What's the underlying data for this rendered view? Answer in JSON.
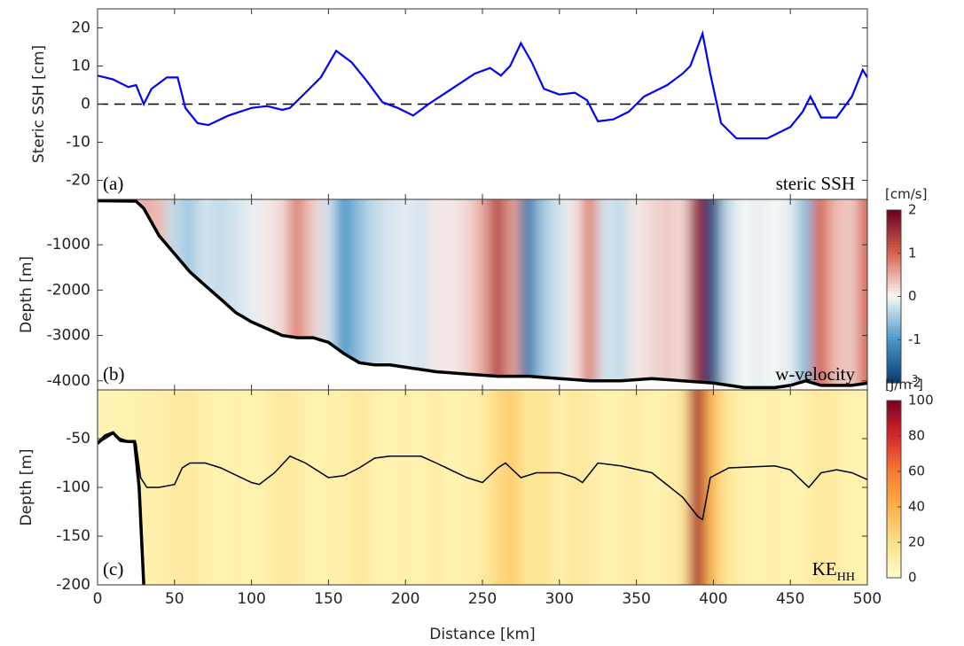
{
  "chart_data": [
    {
      "type": "line",
      "title": "steric SSH",
      "panel_label": "(a)",
      "ylabel": "Steric SSH [cm]",
      "color": "#0000ff",
      "x": [
        0,
        10,
        20,
        25,
        30,
        35,
        45,
        52,
        57,
        65,
        72,
        85,
        100,
        110,
        120,
        125,
        135,
        145,
        155,
        165,
        175,
        185,
        195,
        205,
        215,
        230,
        245,
        255,
        262,
        268,
        275,
        282,
        290,
        300,
        310,
        318,
        325,
        335,
        345,
        355,
        370,
        380,
        385,
        393,
        398,
        405,
        415,
        435,
        450,
        458,
        463,
        470,
        480,
        490,
        497,
        500
      ],
      "values": [
        7.5,
        6.5,
        4.5,
        5,
        0,
        4,
        7,
        7,
        -1,
        -5,
        -5.5,
        -3,
        -1,
        -0.5,
        -1.5,
        -1,
        3,
        7,
        14,
        11,
        6,
        0.5,
        -1,
        -3,
        0,
        4,
        8,
        9.5,
        7.5,
        10,
        16,
        11,
        4,
        2.5,
        3,
        1,
        -4.5,
        -4,
        -2,
        2,
        5,
        8,
        10,
        18.5,
        8,
        -5,
        -9,
        -9,
        -6,
        -2,
        2,
        -3.5,
        -3.5,
        2,
        9,
        7
      ],
      "ylim": [
        -25,
        25
      ],
      "yticks": [
        -20,
        -10,
        0,
        10,
        20
      ],
      "reference_line": 0
    },
    {
      "type": "heatmap",
      "title": "w-velocity",
      "panel_label": "(b)",
      "ylabel": "Depth [m]",
      "x": [
        0,
        10,
        20,
        30,
        40,
        50,
        60,
        70,
        80,
        90,
        100,
        110,
        120,
        130,
        140,
        150,
        160,
        170,
        180,
        190,
        200,
        210,
        220,
        230,
        240,
        250,
        260,
        270,
        280,
        290,
        300,
        310,
        320,
        330,
        340,
        350,
        360,
        370,
        380,
        390,
        400,
        410,
        420,
        430,
        440,
        450,
        460,
        470,
        480,
        490,
        500
      ],
      "values": [
        0,
        0.1,
        0.3,
        0.5,
        0.4,
        -0.3,
        -0.5,
        -0.2,
        -0.3,
        -0.2,
        -0.1,
        0.1,
        0.2,
        0.8,
        0.3,
        -0.2,
        -1.0,
        -0.6,
        -0.3,
        -0.2,
        -0.1,
        -0.2,
        0.1,
        0.1,
        0.2,
        0.5,
        1.3,
        0.6,
        -1.3,
        -0.5,
        -0.2,
        0.1,
        0.8,
        -0.2,
        -0.3,
        0.1,
        0.2,
        0.3,
        0.2,
        1.6,
        -1.8,
        -0.3,
        0,
        -0.1,
        0,
        -0.1,
        -0.6,
        1.0,
        0.4,
        0.3,
        1.0
      ],
      "ylim": [
        -4200,
        0
      ],
      "yticks": [
        -4000,
        -3000,
        -2000,
        -1000
      ],
      "bathymetry": {
        "x": [
          0,
          25,
          30,
          40,
          50,
          60,
          70,
          80,
          90,
          100,
          110,
          120,
          130,
          140,
          150,
          160,
          170,
          180,
          190,
          200,
          220,
          240,
          260,
          280,
          300,
          320,
          340,
          360,
          380,
          400,
          420,
          440,
          450,
          460,
          470,
          490,
          500
        ],
        "values": [
          -30,
          -40,
          -200,
          -800,
          -1200,
          -1600,
          -1900,
          -2200,
          -2500,
          -2700,
          -2850,
          -3000,
          -3050,
          -3050,
          -3150,
          -3400,
          -3600,
          -3650,
          -3650,
          -3700,
          -3800,
          -3850,
          -3900,
          -3900,
          -3950,
          -4000,
          -4000,
          -3950,
          -4000,
          -4050,
          -4150,
          -4150,
          -4100,
          -4000,
          -4100,
          -4100,
          -4050
        ]
      },
      "colorbar": {
        "label": "[cm/s]",
        "lim": [
          -2,
          2
        ],
        "ticks": [
          -2,
          -1,
          0,
          1,
          2
        ],
        "colors": [
          "#0a3a72",
          "#4a98c9",
          "#f7f7f7",
          "#d8624e",
          "#6a0020"
        ]
      }
    },
    {
      "type": "heatmap",
      "title": "KE",
      "title_sub": "HH",
      "panel_label": "(c)",
      "ylabel": "Depth [m]",
      "xlabel": "Distance [km]",
      "xlim": [
        0,
        500
      ],
      "xticks": [
        0,
        50,
        100,
        150,
        200,
        250,
        300,
        350,
        400,
        450,
        500
      ],
      "x": [
        0,
        10,
        20,
        30,
        40,
        50,
        60,
        70,
        80,
        90,
        100,
        110,
        120,
        130,
        140,
        150,
        160,
        170,
        180,
        190,
        200,
        210,
        220,
        230,
        240,
        250,
        260,
        270,
        280,
        290,
        300,
        310,
        320,
        330,
        340,
        350,
        360,
        370,
        380,
        390,
        400,
        410,
        420,
        430,
        440,
        450,
        460,
        470,
        480,
        490,
        500
      ],
      "values": [
        8,
        8,
        8,
        10,
        10,
        12,
        15,
        10,
        8,
        10,
        8,
        10,
        15,
        12,
        8,
        10,
        10,
        15,
        10,
        8,
        10,
        8,
        12,
        8,
        10,
        12,
        22,
        28,
        15,
        18,
        10,
        15,
        12,
        8,
        10,
        12,
        8,
        10,
        15,
        90,
        35,
        15,
        10,
        8,
        10,
        8,
        10,
        15,
        12,
        8,
        10
      ],
      "ylim": [
        -200,
        0
      ],
      "yticks": [
        -200,
        -150,
        -100,
        -50
      ],
      "mixed_layer": {
        "x": [
          0,
          10,
          15,
          25,
          28,
          32,
          40,
          50,
          55,
          60,
          70,
          80,
          100,
          105,
          115,
          125,
          135,
          150,
          160,
          170,
          180,
          190,
          210,
          220,
          240,
          250,
          260,
          265,
          275,
          285,
          300,
          310,
          315,
          325,
          340,
          360,
          380,
          390,
          393,
          398,
          410,
          440,
          450,
          462,
          470,
          480,
          490,
          500
        ],
        "values": [
          -55,
          -45,
          -50,
          -55,
          -90,
          -100,
          -100,
          -97,
          -80,
          -75,
          -75,
          -80,
          -95,
          -97,
          -85,
          -68,
          -75,
          -90,
          -88,
          -80,
          -70,
          -68,
          -68,
          -75,
          -90,
          -95,
          -80,
          -75,
          -90,
          -85,
          -85,
          -90,
          -95,
          -75,
          -78,
          -85,
          -110,
          -130,
          -133,
          -90,
          -80,
          -78,
          -82,
          -100,
          -85,
          -82,
          -85,
          -92
        ]
      },
      "bathymetry": {
        "x": [
          0,
          5,
          10,
          15,
          20,
          24,
          27,
          30
        ],
        "values": [
          -55,
          -47,
          -44,
          -52,
          -53,
          -53,
          -100,
          -200
        ]
      },
      "colorbar": {
        "label": "[J/m",
        "label_sup": "3",
        "label_end": "]",
        "lim": [
          0,
          100
        ],
        "ticks": [
          0,
          20,
          40,
          60,
          80,
          100
        ],
        "colors": [
          "#ffffcc",
          "#fee08a",
          "#fdb14a",
          "#f77a34",
          "#d7262a",
          "#7a0026"
        ]
      }
    }
  ]
}
